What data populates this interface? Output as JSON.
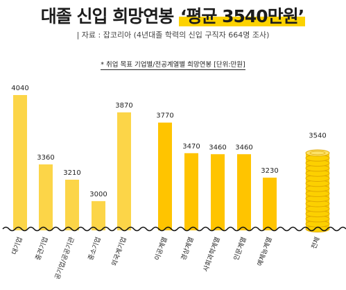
{
  "header": {
    "title_main": "대졸 신입 희망연봉",
    "title_highlight": "‘평균 3540만원’",
    "source": "| 자료 : 잡코리아 (4년대졸 학력의 신입 구직자 664명 조사)",
    "note": "* 취업 목표 기업별/전공계열별 희망연봉 [단위:만원]"
  },
  "colors": {
    "bar_light": "#fcd548",
    "bar_dark": "#ffc400",
    "coin": "#fcd000",
    "coin_edge": "#e0a800",
    "axis_wave": "#111111"
  },
  "chart_data": {
    "type": "bar",
    "unit": "만원",
    "title": "대졸 신입 희망연봉 ‘평균 3540만원’",
    "categories": [
      "대기업",
      "중견기업",
      "공기업/공공기관",
      "중소기업",
      "외국계기업",
      "이공계열",
      "경상계열",
      "사회과학계열",
      "인문계열",
      "예체능계열",
      "전체"
    ],
    "values": [
      4040,
      3360,
      3210,
      3000,
      3870,
      3770,
      3470,
      3460,
      3460,
      3230,
      3540
    ],
    "value_labels": [
      "4040",
      "3360",
      "3210",
      "3000",
      "3870",
      "3770",
      "3470",
      "3460",
      "3460",
      "3230",
      "3540"
    ],
    "groups": [
      {
        "name": "취업 목표 기업별",
        "items": [
          "대기업",
          "중견기업",
          "공기업/공공기관",
          "중소기업",
          "외국계기업"
        ],
        "color": "light"
      },
      {
        "name": "전공계열별",
        "items": [
          "이공계열",
          "경상계열",
          "사회과학계열",
          "인문계열",
          "예체능계열"
        ],
        "color": "dark"
      },
      {
        "name": "전체",
        "items": [
          "전체"
        ],
        "color": "coin"
      }
    ],
    "axis_break": true,
    "grid": false
  }
}
